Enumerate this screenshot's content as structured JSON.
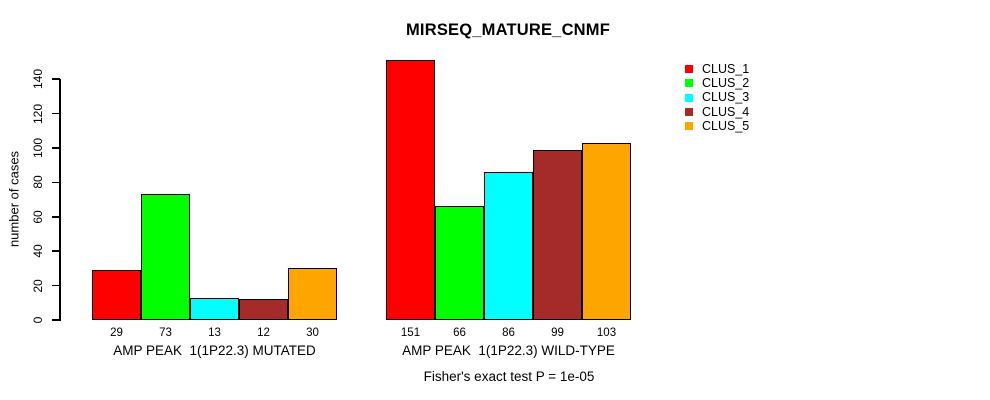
{
  "title": "MIRSEQ_MATURE_CNMF",
  "chart_data": {
    "type": "bar",
    "title": "MIRSEQ_MATURE_CNMF",
    "categories": [
      "AMP PEAK  1(1P22.3) MUTATED",
      "AMP PEAK  1(1P22.3) WILD-TYPE"
    ],
    "series": [
      {
        "name": "CLUS_1",
        "color": "#ff0000",
        "values": [
          29,
          151
        ]
      },
      {
        "name": "CLUS_2",
        "color": "#00ff00",
        "values": [
          73,
          66
        ]
      },
      {
        "name": "CLUS_3",
        "color": "#00ffff",
        "values": [
          13,
          86
        ]
      },
      {
        "name": "CLUS_4",
        "color": "#a52a2a",
        "values": [
          12,
          99
        ]
      },
      {
        "name": "CLUS_5",
        "color": "#ffa500",
        "values": [
          30,
          103
        ]
      }
    ],
    "xlabel": "",
    "ylabel": "number of cases",
    "ylim": [
      0,
      140
    ],
    "yticks": [
      0,
      20,
      40,
      60,
      80,
      100,
      120,
      140
    ],
    "grid": false,
    "legend_position": "top-right",
    "bar_value_labels": true,
    "annotation": "Fisher's exact test P = 1e-05"
  }
}
